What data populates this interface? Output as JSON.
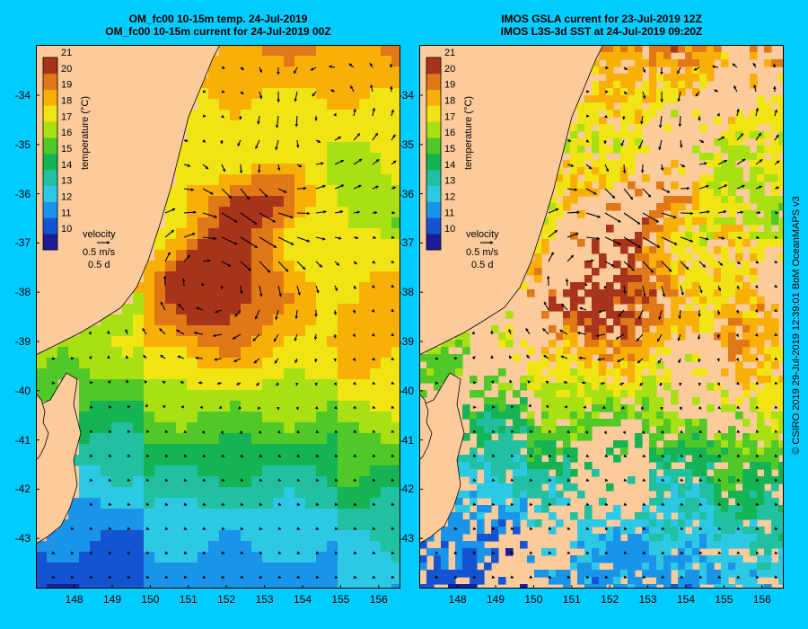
{
  "panels": [
    {
      "id": "model",
      "title_line1": "OM_fc00 10-15m temp. 24-Jul-2019",
      "title_line2": "OM_fc00 10-15m current for 24-Jul-2019 00Z",
      "has_gaps": false
    },
    {
      "id": "observed",
      "title_line1": "IMOS GSLA current for 23-Jul-2019 12Z",
      "title_line2": "IMOS L3S-3d SST at 24-Jul-2019 09:20Z",
      "has_gaps": true
    }
  ],
  "latitude_labels": [
    "-34",
    "-35",
    "-36",
    "-37",
    "-38",
    "-39",
    "-40",
    "-41",
    "-42",
    "-43"
  ],
  "longitude_labels": [
    "148",
    "149",
    "150",
    "151",
    "152",
    "153",
    "154",
    "155",
    "156"
  ],
  "colorbar": {
    "ticks": [
      "10",
      "11",
      "12",
      "13",
      "14",
      "15",
      "16",
      "17",
      "18",
      "19",
      "20",
      "21"
    ],
    "label": "temperature (°C)"
  },
  "velocity_key": {
    "title": "velocity",
    "speed": "0.5 m/s",
    "time": "0.5 d"
  },
  "credit": "© CSIRO 2019   29-Jul-2019 12:39:01 BoM OceanMAPS v3",
  "colors": {
    "frame_background": "#00ccff",
    "land": "#fbcb9c",
    "warm": "#a8301a",
    "cold": "#1858d0"
  }
}
